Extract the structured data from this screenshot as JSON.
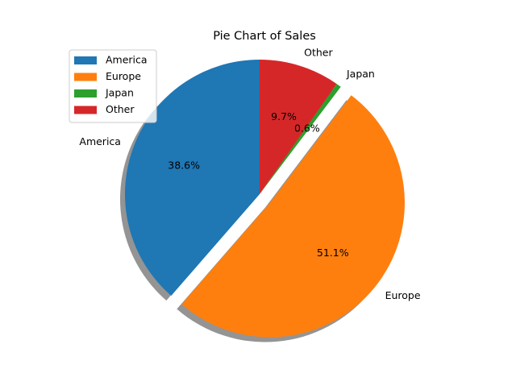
{
  "chart_data": {
    "type": "pie",
    "title": "Pie Chart of Sales",
    "start_angle_deg": 90,
    "direction": "counterclockwise",
    "shadow": true,
    "legend_position": "upper-left",
    "slices": [
      {
        "label": "America",
        "value": 38.6,
        "pct_label": "38.6%",
        "color": "#1f77b4",
        "explode": 0
      },
      {
        "label": "Europe",
        "value": 51.1,
        "pct_label": "51.1%",
        "color": "#ff7f0e",
        "explode": 0.1
      },
      {
        "label": "Japan",
        "value": 0.6,
        "pct_label": "0.6%",
        "color": "#2ca02c",
        "explode": 0
      },
      {
        "label": "Other",
        "value": 9.7,
        "pct_label": "9.7%",
        "color": "#d62728",
        "explode": 0
      }
    ]
  }
}
